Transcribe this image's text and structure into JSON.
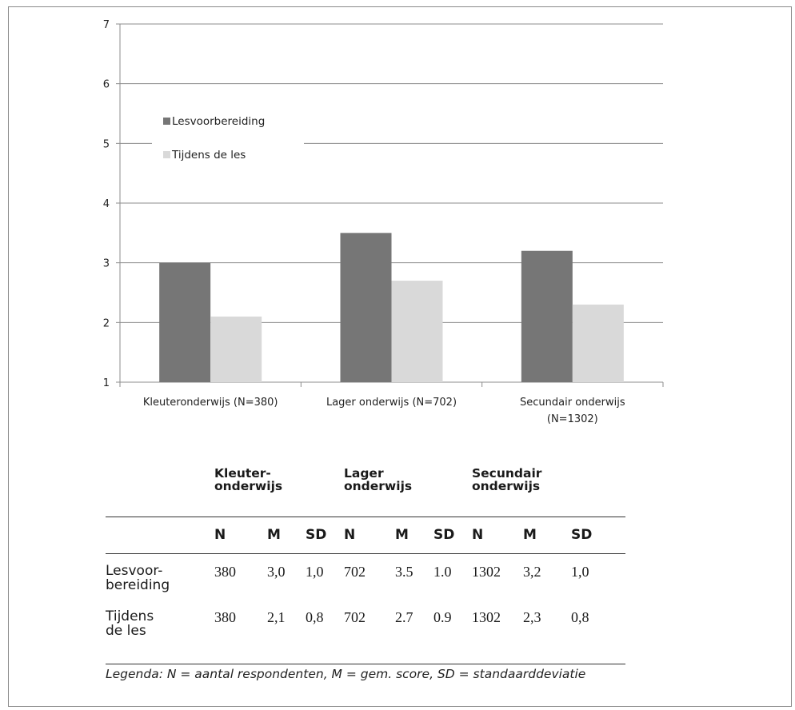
{
  "chart_data": {
    "type": "bar",
    "categories": [
      "Kleuteronderwijs (N=380)",
      "Lager onderwijs (N=702)",
      "Secundair onderwijs (N=1302)"
    ],
    "category_lines": [
      [
        "Kleuteronderwijs (N=380)"
      ],
      [
        "Lager onderwijs (N=702)"
      ],
      [
        "Secundair onderwijs",
        "(N=1302)"
      ]
    ],
    "series": [
      {
        "name": "Lesvoorbereiding",
        "values": [
          3.0,
          3.5,
          3.2
        ],
        "color": "#767676"
      },
      {
        "name": "Tijdens de les",
        "values": [
          2.1,
          2.7,
          2.3
        ],
        "color": "#d9d9d9"
      }
    ],
    "y_ticks": [
      "1",
      "2",
      "3",
      "4",
      "5",
      "6",
      "7"
    ],
    "ylim": [
      1,
      7
    ],
    "grid": true,
    "legend_position": "top-left"
  },
  "table": {
    "groups": [
      {
        "line1": "Kleuter-",
        "line2": "onderwijs"
      },
      {
        "line1": "Lager",
        "line2": "onderwijs"
      },
      {
        "line1": "Secundair",
        "line2": "onderwijs"
      }
    ],
    "subheaders": [
      "N",
      "M",
      "SD",
      "N",
      "M",
      "SD",
      "N",
      "M",
      "SD"
    ],
    "rows": [
      {
        "label1": "Lesvoor-",
        "label2": "bereiding",
        "cells": [
          "380",
          "3,0",
          "1,0",
          "702",
          "3.5",
          "1.0",
          "1302",
          "3,2",
          "1,0"
        ]
      },
      {
        "label1": "Tijdens",
        "label2": "de les",
        "cells": [
          "380",
          "2,1",
          "0,8",
          "702",
          "2.7",
          "0.9",
          "1302",
          "2,3",
          "0,8"
        ]
      }
    ],
    "legenda": "Legenda: N = aantal respondenten, M = gem. score, SD = standaarddeviatie"
  }
}
